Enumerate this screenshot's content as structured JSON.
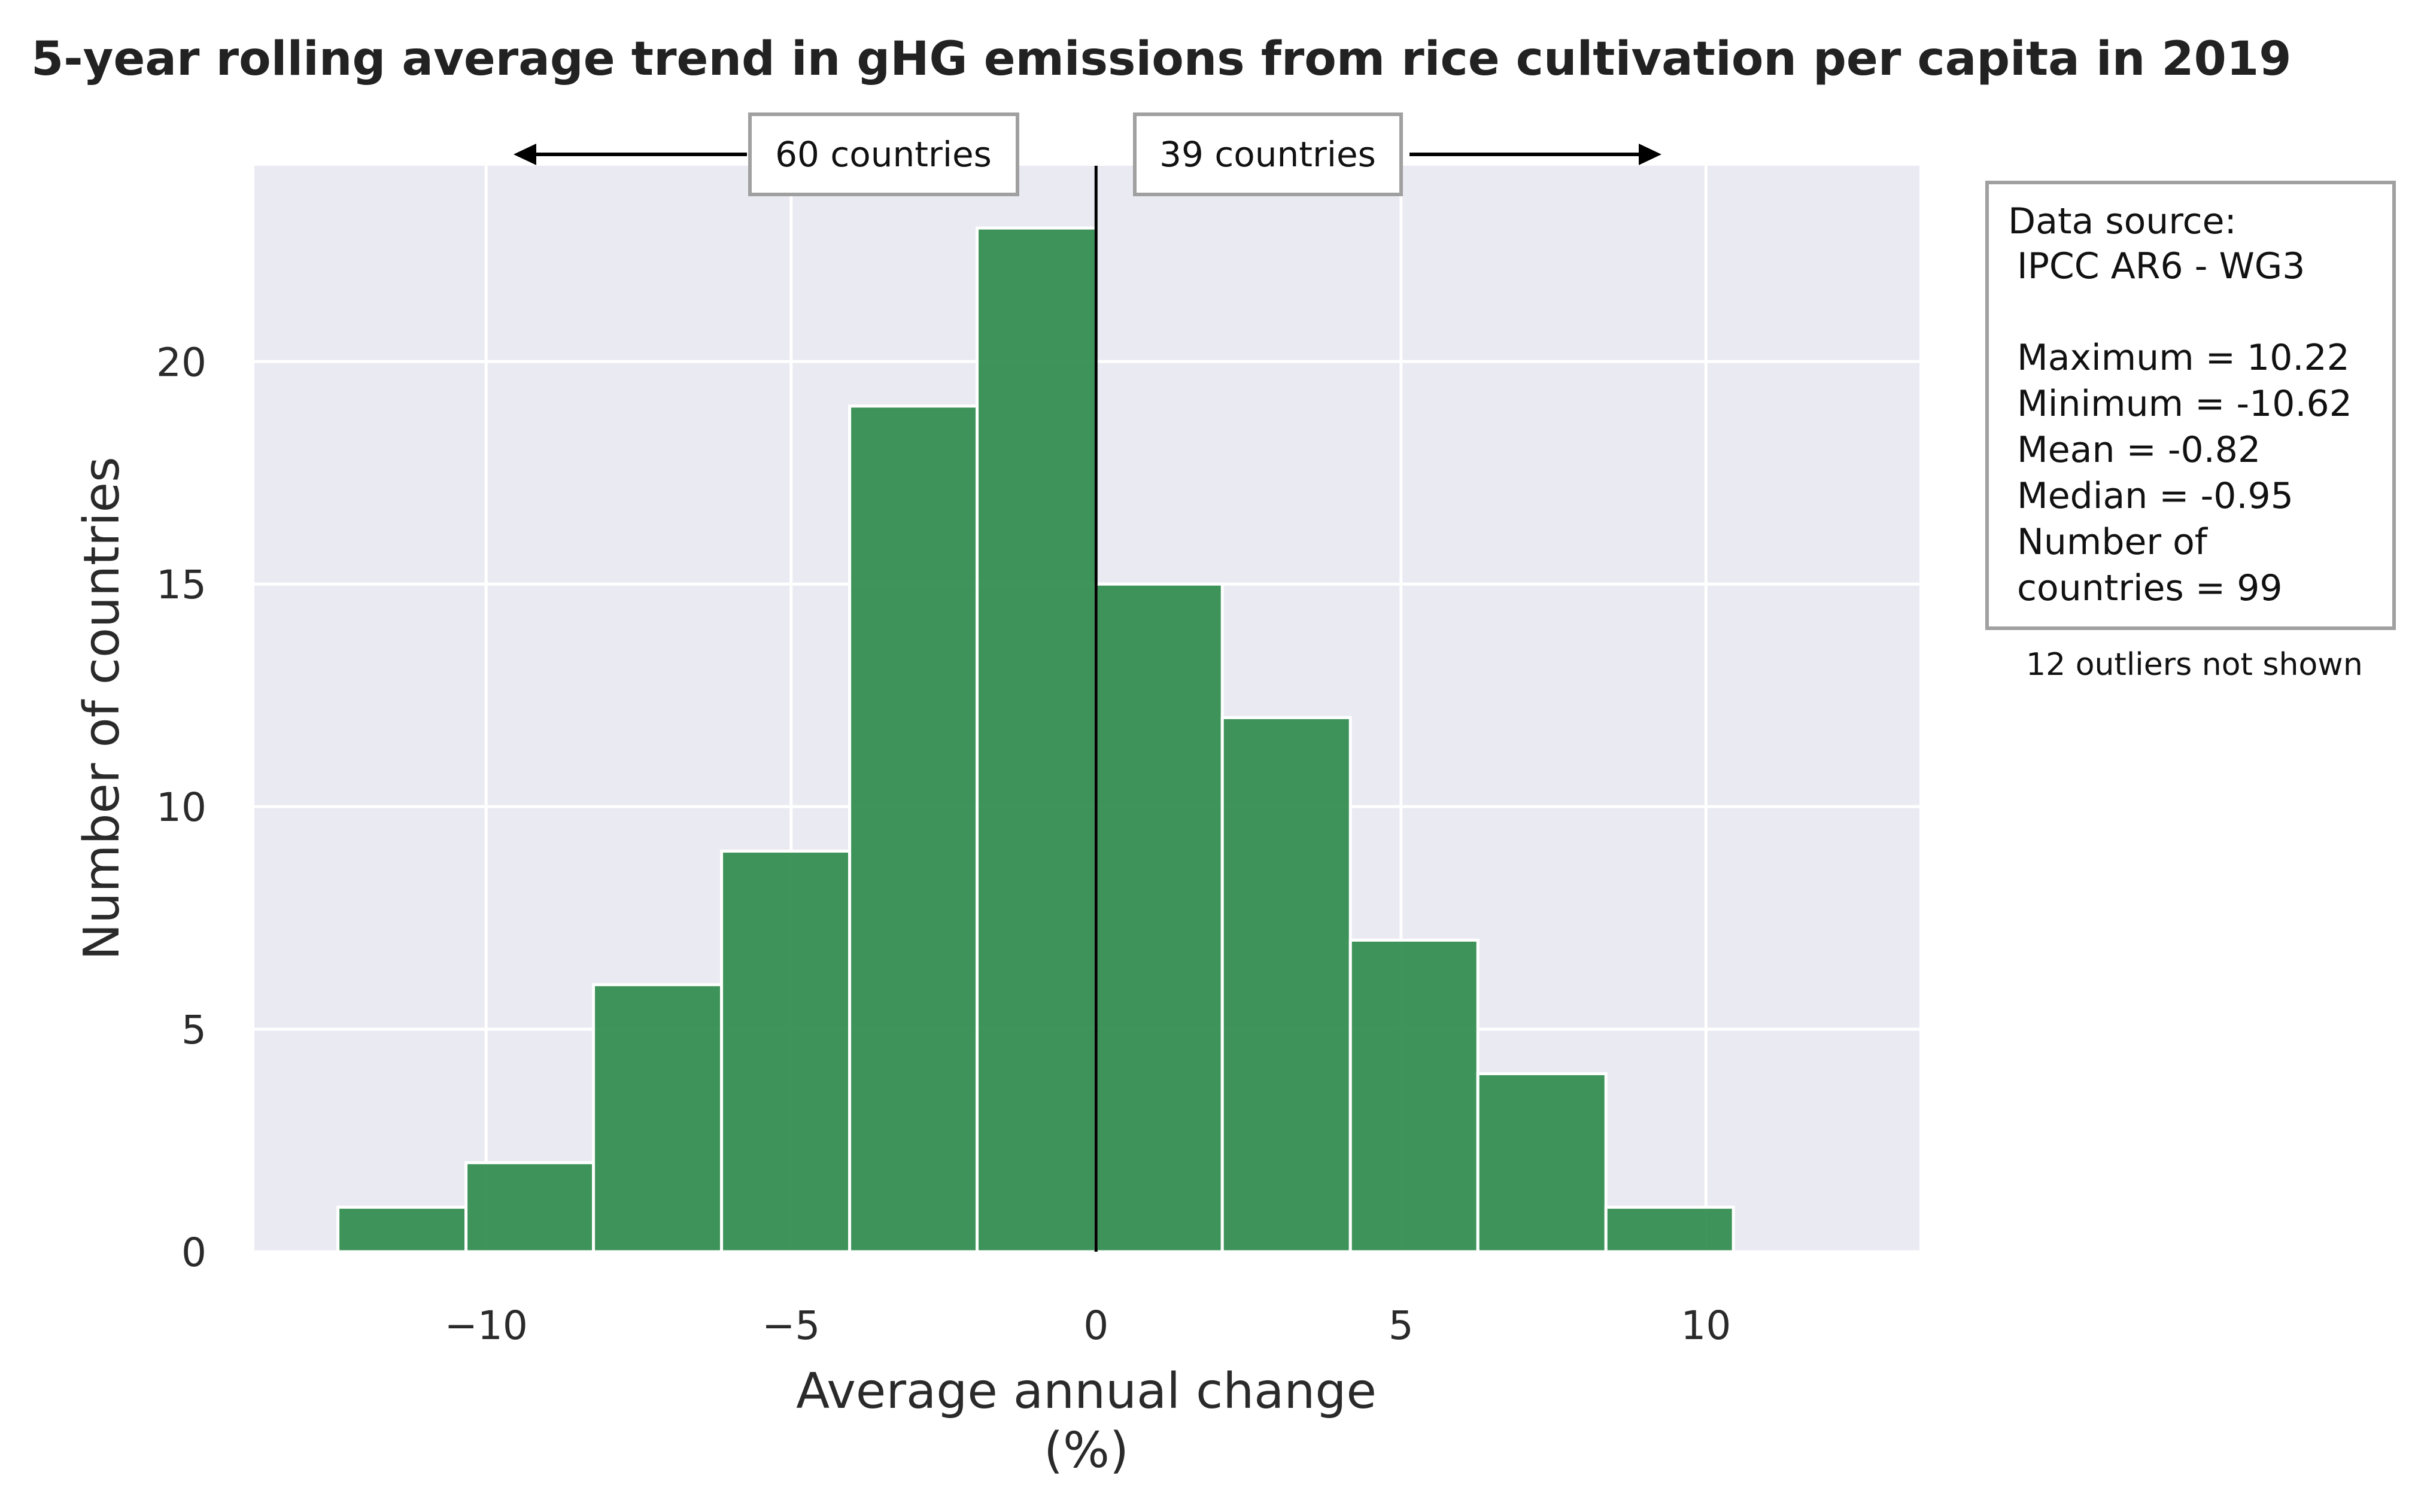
{
  "chart_data": {
    "type": "bar",
    "title": "5-year rolling average trend in gHG emissions from rice cultivation per capita in 2019",
    "xlabel_line1": "Average annual change",
    "xlabel_line2": "(%)",
    "ylabel": "Number of countries",
    "bin_edges": [
      -12.43,
      -10.33,
      -8.24,
      -6.14,
      -4.04,
      -1.95,
      0.0,
      2.07,
      4.17,
      6.26,
      8.36,
      10.45
    ],
    "values": [
      1,
      2,
      6,
      9,
      19,
      23,
      15,
      12,
      7,
      4,
      1
    ],
    "xlim": [
      -13.8,
      13.5
    ],
    "ylim": [
      0,
      24.4
    ],
    "xticks": [
      -10,
      -5,
      0,
      5,
      10
    ],
    "xtick_labels": [
      "−10",
      "−5",
      "0",
      "5",
      "10"
    ],
    "yticks": [
      0,
      5,
      10,
      15,
      20
    ],
    "ytick_labels": [
      "0",
      "5",
      "10",
      "15",
      "20"
    ],
    "grid": true,
    "bar_color": "#2e8b4c",
    "background_color": "#eaeaf2",
    "reference_line_x": 0,
    "left_annotation": "60 countries",
    "right_annotation": "39 countries",
    "stats_box": {
      "source_label": "Data source:",
      "source_value": "IPCC AR6 - WG3",
      "maximum": "Maximum  = 10.22",
      "minimum": "Minimum   = -10.62",
      "mean": "Mean       = -0.82",
      "median": "Median     = -0.95",
      "count_line1": "Number of",
      "count_line2": "countries  = 99"
    },
    "outliers_note": "12 outliers not shown"
  }
}
